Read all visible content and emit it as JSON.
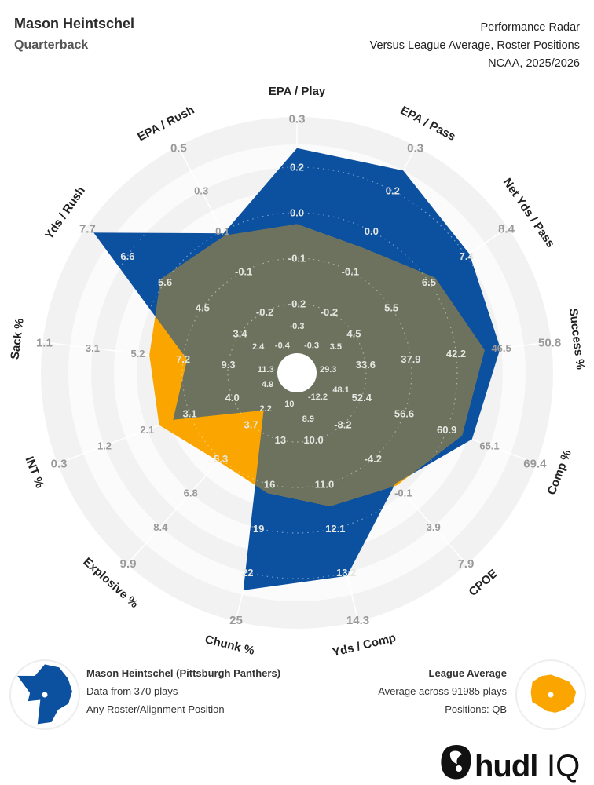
{
  "header": {
    "player_name": "Mason Heintschel",
    "position": "Quarterback",
    "report_title": "Performance Radar",
    "comparison": "Versus League Average, Roster Positions",
    "season": "NCAA, 2025/2026"
  },
  "legend": {
    "player": {
      "title": "Mason Heintschel (Pittsburgh Panthers)",
      "line1": "Data from 370 plays",
      "line2": "Any Roster/Alignment Position"
    },
    "league": {
      "title": "League Average",
      "line1": "Average across 91985 plays",
      "line2": "Positions: QB"
    }
  },
  "logo": {
    "text": "hudl IQ"
  },
  "chart_data": {
    "type": "radar",
    "colors": {
      "player": "#0c50a0",
      "league": "#fba500",
      "overlap": "#6c725e"
    },
    "series": [
      {
        "name": "Mason Heintschel (Pittsburgh Panthers)",
        "key": "player"
      },
      {
        "name": "League Average",
        "key": "league"
      }
    ],
    "axes": [
      {
        "label": "EPA / Play",
        "ticks": [
          "-0.3",
          "-0.2",
          "-0.1",
          "0.0",
          "0.2",
          "0.3"
        ],
        "player": 0.23,
        "league": 0.03
      },
      {
        "label": "EPA / Pass",
        "ticks": [
          "-0.3",
          "-0.2",
          "-0.1",
          "0.0",
          "0.2",
          "0.3"
        ],
        "player": 0.24,
        "league": 0.01
      },
      {
        "label": "Net Yds / Pass",
        "ticks": [
          "3.5",
          "4.5",
          "5.5",
          "6.5",
          "7.4",
          "8.4"
        ],
        "player": 7.5,
        "league": 6.6
      },
      {
        "label": "Success %",
        "ticks": [
          "29.3",
          "33.6",
          "37.9",
          "42.2",
          "46.5",
          "50.8"
        ],
        "player": 46.4,
        "league": 44.9
      },
      {
        "label": "Comp %",
        "ticks": [
          "48.1",
          "52.4",
          "56.6",
          "60.9",
          "65.1",
          "69.4"
        ],
        "player": 63.4,
        "league": 62.4
      },
      {
        "label": "CPOE",
        "ticks": [
          "-12.2",
          "-8.2",
          "-4.2",
          "-0.1",
          "3.9",
          "7.9"
        ],
        "player": -1.2,
        "league": -1.0
      },
      {
        "label": "Yds / Comp",
        "ticks": [
          "8.9",
          "10.0",
          "11.0",
          "12.1",
          "13.2",
          "14.3"
        ],
        "player": 13.3,
        "league": 11.6
      },
      {
        "label": "Chunk %",
        "ticks": [
          "10",
          "13",
          "16",
          "19",
          "22",
          "25"
        ],
        "player": 23.2,
        "league": 16.6
      },
      {
        "label": "Explosive %",
        "ticks": [
          "2.2",
          "3.7",
          "5.3",
          "6.8",
          "8.4",
          "9.9"
        ],
        "player": 3.1,
        "league": 5.4
      },
      {
        "label": "INT %",
        "ticks": [
          "4.9",
          "4.0",
          "3.1",
          "2.1",
          "1.2",
          "0.3"
        ],
        "player": 2.7,
        "league": 2.4
      },
      {
        "label": "Sack %",
        "ticks": [
          "11.3",
          "9.3",
          "7.2",
          "5.2",
          "3.1",
          "1.1"
        ],
        "player": 7.4,
        "league": 5.7
      },
      {
        "label": "Yds / Rush",
        "ticks": [
          "2.4",
          "3.4",
          "4.5",
          "5.6",
          "6.6",
          "7.7"
        ],
        "player": 7.6,
        "league": 5.7
      },
      {
        "label": "EPA / Rush",
        "ticks": [
          "-0.4",
          "-0.2",
          "-0.1",
          "0.1",
          "0.3",
          "0.5"
        ],
        "player": 0.13,
        "league": 0.12
      }
    ]
  }
}
